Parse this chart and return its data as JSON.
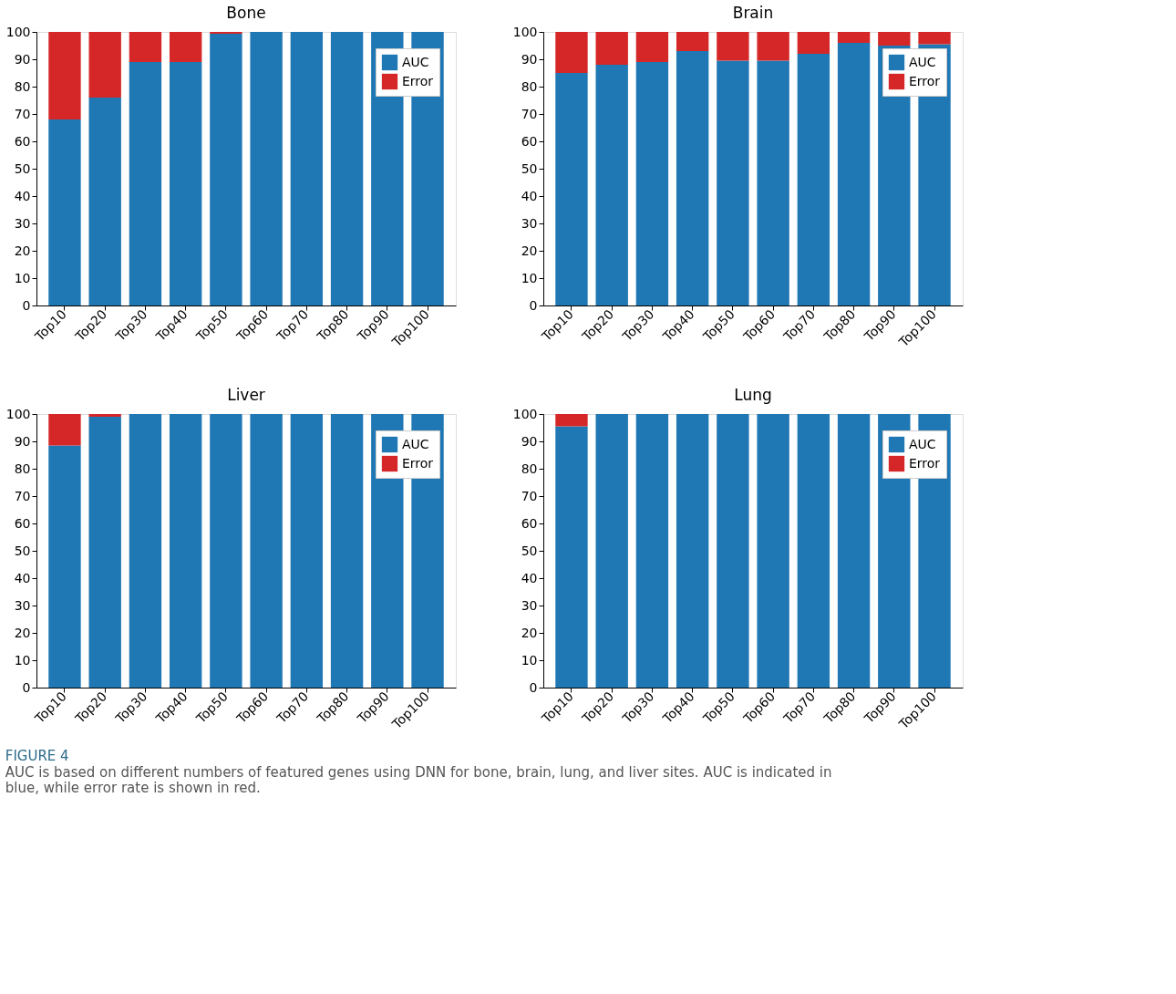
{
  "chart_data": [
    {
      "type": "bar",
      "title": "Bone",
      "stacked": true,
      "legend": "top right",
      "grid": false,
      "categories": [
        "Top10",
        "Top20",
        "Top30",
        "Top40",
        "Top50",
        "Top60",
        "Top70",
        "Top80",
        "Top90",
        "Top100"
      ],
      "ylim": [
        0,
        100
      ],
      "yticks": [
        0,
        10,
        20,
        30,
        40,
        50,
        60,
        70,
        80,
        90,
        100
      ],
      "series": [
        {
          "name": "AUC",
          "color": "#1f77b4",
          "values": [
            68,
            76,
            89,
            89,
            99.3,
            100,
            100,
            100,
            100,
            100
          ]
        },
        {
          "name": "Error",
          "color": "#d62728",
          "values": [
            32,
            24,
            11,
            11,
            0.7,
            0,
            0,
            0,
            0,
            0
          ]
        }
      ]
    },
    {
      "type": "bar",
      "title": "Brain",
      "stacked": true,
      "legend": "top right",
      "grid": false,
      "categories": [
        "Top10",
        "Top20",
        "Top30",
        "Top40",
        "Top50",
        "Top60",
        "Top70",
        "Top80",
        "Top90",
        "Top100"
      ],
      "ylim": [
        0,
        100
      ],
      "yticks": [
        0,
        10,
        20,
        30,
        40,
        50,
        60,
        70,
        80,
        90,
        100
      ],
      "series": [
        {
          "name": "AUC",
          "color": "#1f77b4",
          "values": [
            85,
            88,
            89,
            93,
            89.5,
            89.5,
            92,
            96,
            95,
            95.5
          ]
        },
        {
          "name": "Error",
          "color": "#d62728",
          "values": [
            15,
            12,
            11,
            7,
            10.5,
            10.5,
            8,
            4,
            5,
            4.5
          ]
        }
      ]
    },
    {
      "type": "bar",
      "title": "Liver",
      "stacked": true,
      "legend": "top right",
      "grid": false,
      "categories": [
        "Top10",
        "Top20",
        "Top30",
        "Top40",
        "Top50",
        "Top60",
        "Top70",
        "Top80",
        "Top90",
        "Top100"
      ],
      "ylim": [
        0,
        100
      ],
      "yticks": [
        0,
        10,
        20,
        30,
        40,
        50,
        60,
        70,
        80,
        90,
        100
      ],
      "series": [
        {
          "name": "AUC",
          "color": "#1f77b4",
          "values": [
            88.5,
            99,
            100,
            100,
            100,
            100,
            100,
            100,
            100,
            100
          ]
        },
        {
          "name": "Error",
          "color": "#d62728",
          "values": [
            11.5,
            1,
            0,
            0,
            0,
            0,
            0,
            0,
            0,
            0
          ]
        }
      ]
    },
    {
      "type": "bar",
      "title": "Lung",
      "stacked": true,
      "legend": "top right",
      "grid": false,
      "categories": [
        "Top10",
        "Top20",
        "Top30",
        "Top40",
        "Top50",
        "Top60",
        "Top70",
        "Top80",
        "Top90",
        "Top100"
      ],
      "ylim": [
        0,
        100
      ],
      "yticks": [
        0,
        10,
        20,
        30,
        40,
        50,
        60,
        70,
        80,
        90,
        100
      ],
      "series": [
        {
          "name": "AUC",
          "color": "#1f77b4",
          "values": [
            95.5,
            100,
            100,
            100,
            100,
            100,
            100,
            100,
            100,
            100
          ]
        },
        {
          "name": "Error",
          "color": "#d62728",
          "values": [
            4.5,
            0,
            0,
            0,
            0,
            0,
            0,
            0,
            0,
            0
          ]
        }
      ],
      "annotations": [
        "FIGURE 4",
        "AUC is based on different numbers of featured genes using DNN for bone, brain, lung, and liver sites. AUC is indicated in blue, while error rate is shown in red."
      ]
    }
  ]
}
